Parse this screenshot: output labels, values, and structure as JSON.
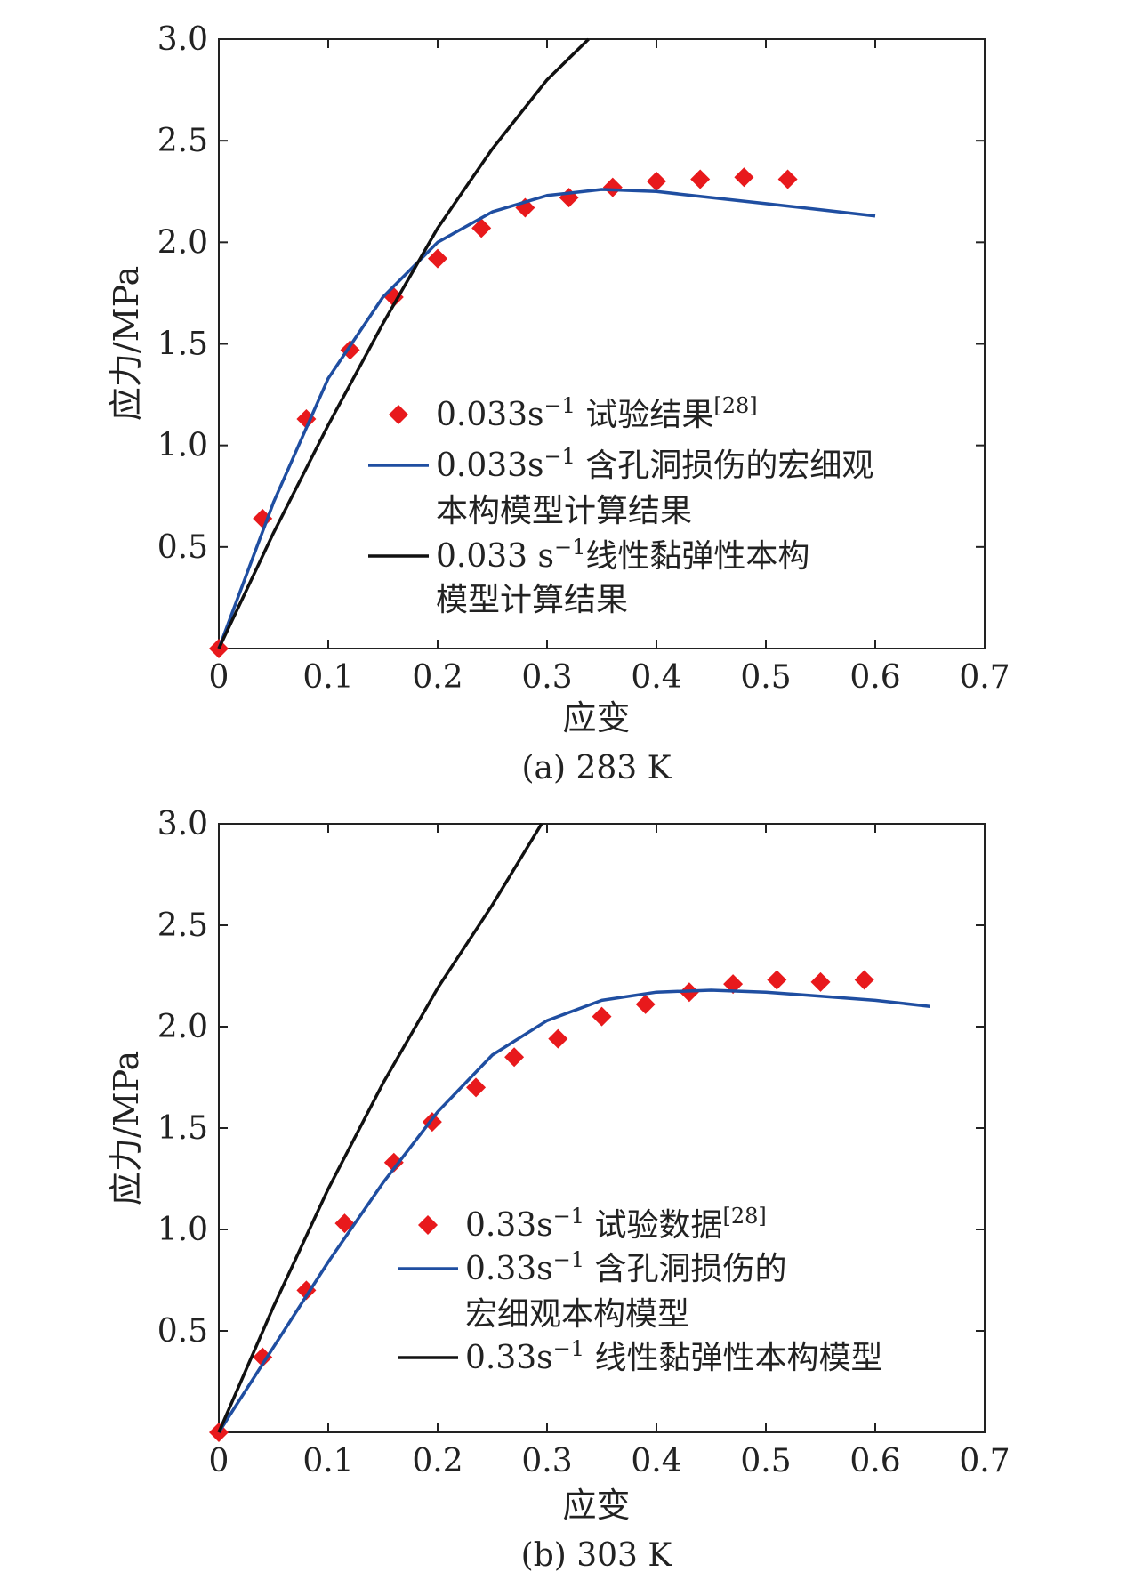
{
  "chart_data": [
    {
      "type": "scatter",
      "caption": "(a) 283 K",
      "xlabel": "应变",
      "ylabel": "应力/MPa",
      "xlim": [
        0,
        0.7
      ],
      "ylim": [
        0,
        3.0
      ],
      "x_ticks": [
        "0",
        "0.1",
        "0.2",
        "0.3",
        "0.4",
        "0.5",
        "0.6",
        "0.7"
      ],
      "y_ticks": [
        "0.5",
        "1.0",
        "1.5",
        "2.0",
        "2.5",
        "3.0"
      ],
      "grid": false,
      "legend_position": "bottom-right",
      "series": [
        {
          "name": "0.033s⁻¹ 试验结果[28]",
          "legend": {
            "main": "0.033s",
            "sup": "−1",
            "text": "  试验结果",
            "ref": "[28]"
          },
          "kind": "markers",
          "color": "#e8191c",
          "points": [
            [
              0,
              0
            ],
            [
              0.04,
              0.64
            ],
            [
              0.08,
              1.13
            ],
            [
              0.12,
              1.47
            ],
            [
              0.16,
              1.73
            ],
            [
              0.2,
              1.92
            ],
            [
              0.24,
              2.07
            ],
            [
              0.28,
              2.17
            ],
            [
              0.32,
              2.22
            ],
            [
              0.36,
              2.27
            ],
            [
              0.4,
              2.3
            ],
            [
              0.44,
              2.31
            ],
            [
              0.48,
              2.32
            ],
            [
              0.52,
              2.31
            ]
          ]
        },
        {
          "name": "0.033s⁻¹ 含孔洞损伤的宏细观本构模型计算结果",
          "legend": {
            "main": "0.033s",
            "sup": "−1",
            "text": "  含孔洞损伤的宏细观",
            "line2": "本构模型计算结果"
          },
          "kind": "line",
          "color": "#1f4ea1",
          "points": [
            [
              0,
              0
            ],
            [
              0.05,
              0.72
            ],
            [
              0.1,
              1.33
            ],
            [
              0.15,
              1.73
            ],
            [
              0.2,
              2.0
            ],
            [
              0.25,
              2.15
            ],
            [
              0.3,
              2.23
            ],
            [
              0.35,
              2.26
            ],
            [
              0.4,
              2.25
            ],
            [
              0.45,
              2.22
            ],
            [
              0.5,
              2.19
            ],
            [
              0.55,
              2.16
            ],
            [
              0.6,
              2.13
            ]
          ]
        },
        {
          "name": "0.033 s⁻¹线性黏弹性本构模型计算结果",
          "legend": {
            "main": "0.033 s",
            "sup": "−1",
            "text": "线性黏弹性本构",
            "line2": "模型计算结果"
          },
          "kind": "line",
          "color": "#111111",
          "points": [
            [
              0,
              0
            ],
            [
              0.05,
              0.57
            ],
            [
              0.1,
              1.1
            ],
            [
              0.15,
              1.6
            ],
            [
              0.2,
              2.07
            ],
            [
              0.25,
              2.46
            ],
            [
              0.3,
              2.8
            ],
            [
              0.338,
              3.0
            ]
          ]
        }
      ]
    },
    {
      "type": "scatter",
      "caption": "(b) 303 K",
      "xlabel": "应变",
      "ylabel": "应力/MPa",
      "xlim": [
        0,
        0.7
      ],
      "ylim": [
        0,
        3.0
      ],
      "x_ticks": [
        "0",
        "0.1",
        "0.2",
        "0.3",
        "0.4",
        "0.5",
        "0.6",
        "0.7"
      ],
      "y_ticks": [
        "0.5",
        "1.0",
        "1.5",
        "2.0",
        "2.5",
        "3.0"
      ],
      "grid": false,
      "legend_position": "bottom-right",
      "series": [
        {
          "name": "0.33s⁻¹ 试验数据[28]",
          "legend": {
            "main": "0.33s",
            "sup": "−1",
            "text": " 试验数据",
            "ref": "[28]"
          },
          "kind": "markers",
          "color": "#e8191c",
          "points": [
            [
              0,
              0
            ],
            [
              0.04,
              0.37
            ],
            [
              0.08,
              0.7
            ],
            [
              0.115,
              1.03
            ],
            [
              0.16,
              1.33
            ],
            [
              0.195,
              1.53
            ],
            [
              0.235,
              1.7
            ],
            [
              0.27,
              1.85
            ],
            [
              0.31,
              1.94
            ],
            [
              0.35,
              2.05
            ],
            [
              0.39,
              2.11
            ],
            [
              0.43,
              2.17
            ],
            [
              0.47,
              2.21
            ],
            [
              0.51,
              2.23
            ],
            [
              0.55,
              2.22
            ],
            [
              0.59,
              2.23
            ]
          ]
        },
        {
          "name": "0.33s⁻¹ 含孔洞损伤的宏细观本构模型",
          "legend": {
            "main": "0.33s",
            "sup": "−1",
            "text": " 含孔洞损伤的",
            "line2": "宏细观本构模型"
          },
          "kind": "line",
          "color": "#1f4ea1",
          "points": [
            [
              0,
              0
            ],
            [
              0.05,
              0.42
            ],
            [
              0.1,
              0.84
            ],
            [
              0.15,
              1.23
            ],
            [
              0.2,
              1.58
            ],
            [
              0.25,
              1.86
            ],
            [
              0.3,
              2.03
            ],
            [
              0.35,
              2.13
            ],
            [
              0.4,
              2.17
            ],
            [
              0.45,
              2.18
            ],
            [
              0.5,
              2.17
            ],
            [
              0.55,
              2.15
            ],
            [
              0.6,
              2.13
            ],
            [
              0.65,
              2.1
            ]
          ]
        },
        {
          "name": "0.33s⁻¹ 线性黏弹性本构模型",
          "legend": {
            "main": "0.33s",
            "sup": "−1",
            "text": " 线性黏弹性本构模型"
          },
          "kind": "line",
          "color": "#111111",
          "points": [
            [
              0,
              0
            ],
            [
              0.05,
              0.62
            ],
            [
              0.1,
              1.2
            ],
            [
              0.15,
              1.72
            ],
            [
              0.2,
              2.19
            ],
            [
              0.25,
              2.6
            ],
            [
              0.295,
              3.0
            ]
          ]
        }
      ]
    }
  ]
}
